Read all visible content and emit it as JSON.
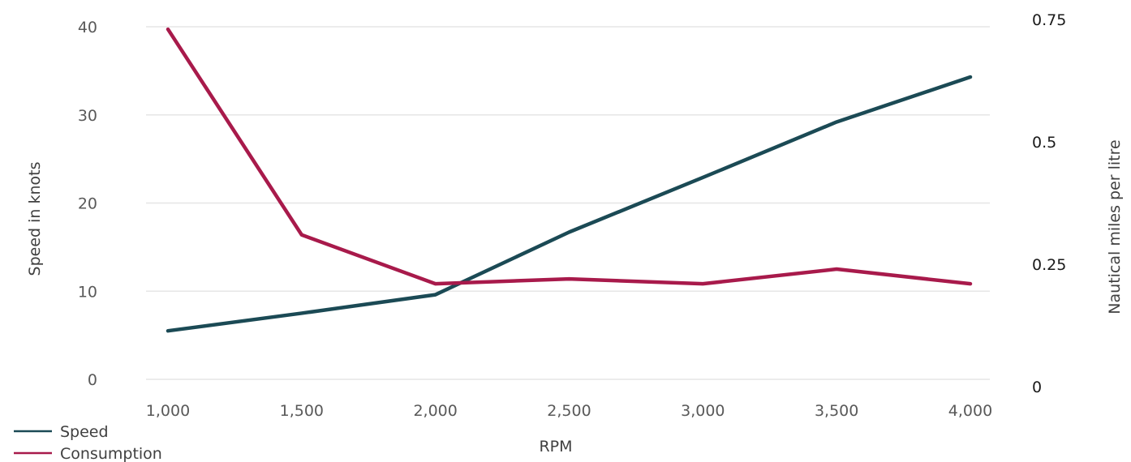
{
  "chart_data": {
    "type": "line",
    "x": [
      1000,
      1500,
      2000,
      2500,
      3000,
      3500,
      4000
    ],
    "x_tick_labels": [
      "1,000",
      "1,500",
      "2,000",
      "2,500",
      "3,000",
      "3,500",
      "4,000"
    ],
    "xlabel": "RPM",
    "ylabel": "Speed in knots",
    "y2label": "Nautical miles per litre",
    "ylim": [
      0,
      40
    ],
    "y2lim": [
      0,
      0.75
    ],
    "y_tick_labels": [
      "0",
      "10",
      "20",
      "30",
      "40"
    ],
    "y2_tick_labels": [
      "0",
      "0.25",
      "0.5",
      "0.75"
    ],
    "grid": true,
    "legend_position": "bottom-left",
    "series": [
      {
        "name": "Speed",
        "axis": "left",
        "color": "#1b4a55",
        "values": [
          5.5,
          7.5,
          9.6,
          16.7,
          22.9,
          29.2,
          34.3
        ]
      },
      {
        "name": "Consumption",
        "axis": "right",
        "color": "#a81a4b",
        "values": [
          0.73,
          0.31,
          0.21,
          0.22,
          0.21,
          0.24,
          0.21
        ]
      }
    ]
  }
}
